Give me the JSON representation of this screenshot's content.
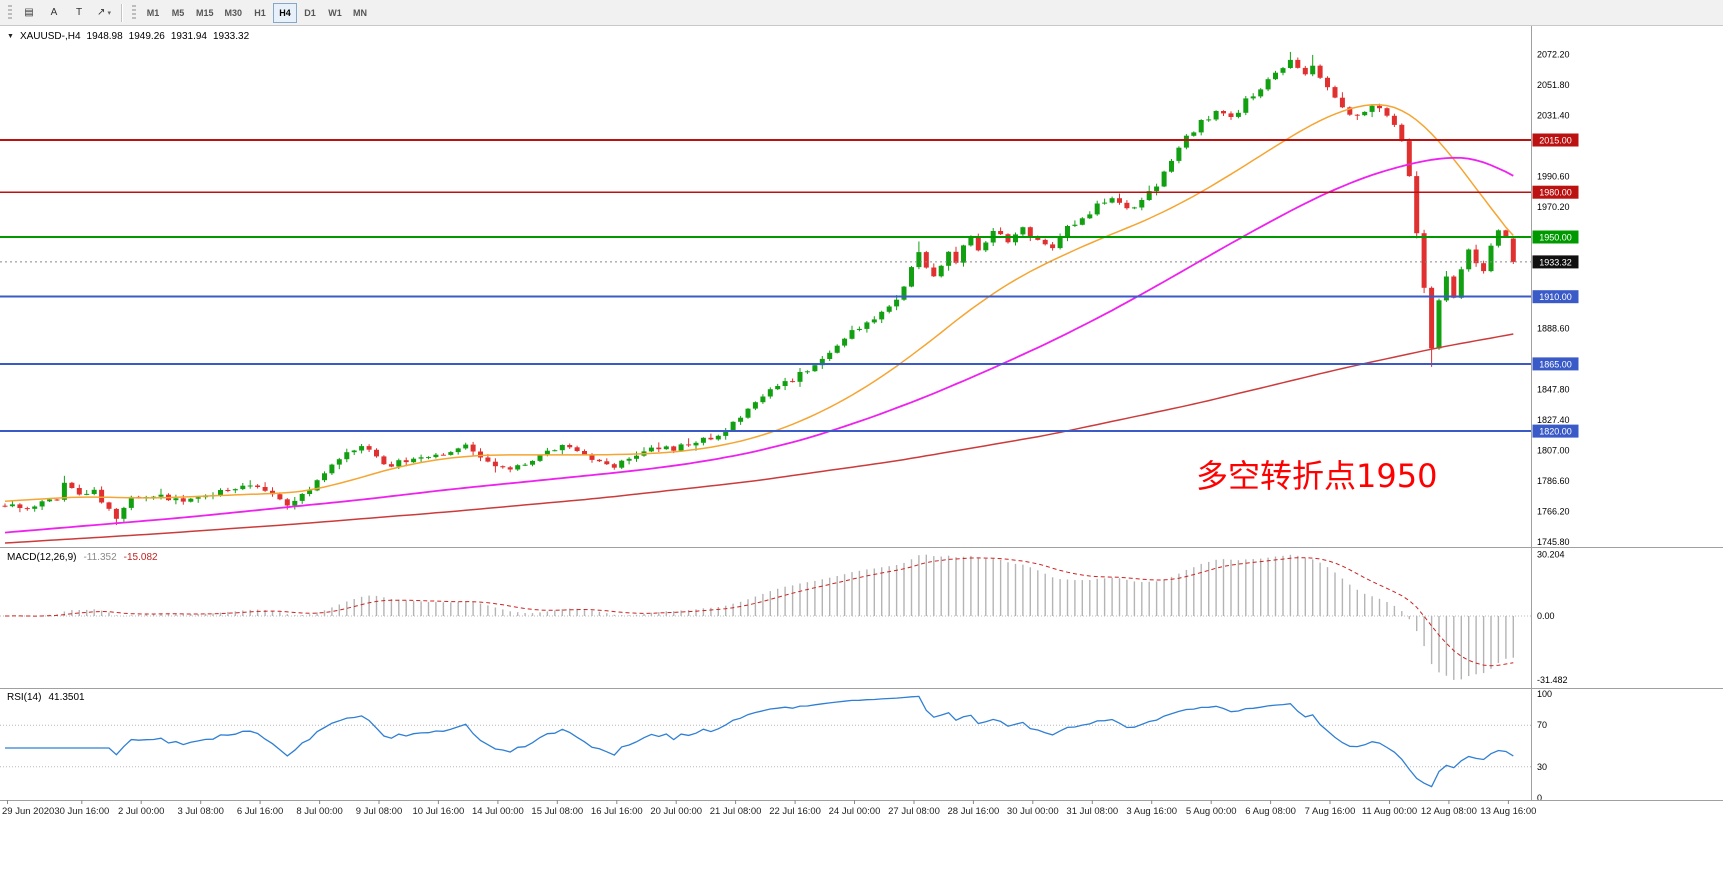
{
  "toolbar": {
    "tools": [
      {
        "name": "chart-objects-button",
        "glyph": "▤",
        "caret": false
      },
      {
        "name": "arrow-tool-button",
        "glyph": "A",
        "caret": false
      },
      {
        "name": "text-tool-button",
        "glyph": "T",
        "caret": false
      },
      {
        "name": "shapes-tool-button",
        "glyph": "↗",
        "caret": true
      }
    ],
    "timeframes": [
      {
        "label": "M1",
        "active": false
      },
      {
        "label": "M5",
        "active": false
      },
      {
        "label": "M15",
        "active": false
      },
      {
        "label": "M30",
        "active": false
      },
      {
        "label": "H1",
        "active": false
      },
      {
        "label": "H4",
        "active": true
      },
      {
        "label": "D1",
        "active": false
      },
      {
        "label": "W1",
        "active": false
      },
      {
        "label": "MN",
        "active": false
      }
    ]
  },
  "symbol_line": {
    "collapse_icon": "▼",
    "title": "XAUUSD-,H4",
    "open": "1948.98",
    "high": "1949.26",
    "low": "1931.94",
    "close": "1933.32"
  },
  "annotation": {
    "text": "多空转折点1950",
    "color": "#ff0000"
  },
  "chart_data": {
    "type": "candlestick",
    "symbol": "XAUUSD-",
    "timeframe": "H4",
    "price_axis": {
      "ticks": [
        "2072.20",
        "2051.80",
        "2031.40",
        "2011.00",
        "1990.60",
        "1970.20",
        "1949.80",
        "1929.40",
        "1909.00",
        "1888.60",
        "1868.20",
        "1847.80",
        "1827.40",
        "1807.00",
        "1786.60",
        "1766.20",
        "1745.80"
      ],
      "max": 2090,
      "min": 1743
    },
    "time_labels": [
      [
        "29 Jun 2020",
        0
      ],
      [
        "30 Jun 16:00",
        10
      ],
      [
        "2 Jul 00:00",
        18
      ],
      [
        "3 Jul 08:00",
        26
      ],
      [
        "6 Jul 16:00",
        34
      ],
      [
        "8 Jul 00:00",
        42
      ],
      [
        "9 Jul 08:00",
        50
      ],
      [
        "10 Jul 16:00",
        58
      ],
      [
        "14 Jul 00:00",
        66
      ],
      [
        "15 Jul 08:00",
        74
      ],
      [
        "16 Jul 16:00",
        82
      ],
      [
        "20 Jul 00:00",
        90
      ],
      [
        "21 Jul 08:00",
        98
      ],
      [
        "22 Jul 16:00",
        106
      ],
      [
        "24 Jul 00:00",
        114
      ],
      [
        "27 Jul 08:00",
        122
      ],
      [
        "28 Jul 16:00",
        130
      ],
      [
        "30 Jul 00:00",
        138
      ],
      [
        "31 Jul 08:00",
        146
      ],
      [
        "3 Aug 16:00",
        154
      ],
      [
        "5 Aug 00:00",
        162
      ],
      [
        "6 Aug 08:00",
        170
      ],
      [
        "7 Aug 16:00",
        178
      ],
      [
        "11 Aug 00:00",
        186
      ],
      [
        "12 Aug 08:00",
        194
      ],
      [
        "13 Aug 16:00",
        202
      ]
    ],
    "candles": {
      "n": 204,
      "close_keyframes": [
        [
          0,
          1770
        ],
        [
          3,
          1766
        ],
        [
          5,
          1771
        ],
        [
          7,
          1774
        ],
        [
          8,
          1786
        ],
        [
          10,
          1776
        ],
        [
          12,
          1779
        ],
        [
          14,
          1768
        ],
        [
          15,
          1762
        ],
        [
          17,
          1774
        ],
        [
          20,
          1777
        ],
        [
          24,
          1774
        ],
        [
          28,
          1777
        ],
        [
          31,
          1782
        ],
        [
          34,
          1784
        ],
        [
          36,
          1779
        ],
        [
          38,
          1771
        ],
        [
          40,
          1777
        ],
        [
          42,
          1786
        ],
        [
          44,
          1798
        ],
        [
          46,
          1807
        ],
        [
          48,
          1811
        ],
        [
          50,
          1803
        ],
        [
          52,
          1797
        ],
        [
          55,
          1801
        ],
        [
          58,
          1803
        ],
        [
          60,
          1806
        ],
        [
          62,
          1813
        ],
        [
          63,
          1808
        ],
        [
          65,
          1800
        ],
        [
          67,
          1795
        ],
        [
          69,
          1797
        ],
        [
          71,
          1801
        ],
        [
          74,
          1807
        ],
        [
          76,
          1811
        ],
        [
          78,
          1806
        ],
        [
          80,
          1798
        ],
        [
          82,
          1797
        ],
        [
          85,
          1804
        ],
        [
          88,
          1809
        ],
        [
          91,
          1809
        ],
        [
          94,
          1814
        ],
        [
          96,
          1818
        ],
        [
          98,
          1824
        ],
        [
          100,
          1833
        ],
        [
          102,
          1843
        ],
        [
          104,
          1849
        ],
        [
          106,
          1855
        ],
        [
          108,
          1862
        ],
        [
          110,
          1869
        ],
        [
          112,
          1876
        ],
        [
          114,
          1887
        ],
        [
          116,
          1892
        ],
        [
          118,
          1898
        ],
        [
          120,
          1908
        ],
        [
          122,
          1928
        ],
        [
          123,
          1942
        ],
        [
          124,
          1930
        ],
        [
          125,
          1922
        ],
        [
          126,
          1931
        ],
        [
          127,
          1938
        ],
        [
          128,
          1931
        ],
        [
          129,
          1944
        ],
        [
          130,
          1950
        ],
        [
          131,
          1941
        ],
        [
          132,
          1948
        ],
        [
          133,
          1956
        ],
        [
          134,
          1950
        ],
        [
          135,
          1946
        ],
        [
          136,
          1952
        ],
        [
          137,
          1958
        ],
        [
          138,
          1951
        ],
        [
          139,
          1946
        ],
        [
          141,
          1943
        ],
        [
          143,
          1957
        ],
        [
          145,
          1963
        ],
        [
          147,
          1971
        ],
        [
          149,
          1976
        ],
        [
          151,
          1969
        ],
        [
          153,
          1975
        ],
        [
          155,
          1986
        ],
        [
          157,
          2003
        ],
        [
          159,
          2016
        ],
        [
          161,
          2027
        ],
        [
          163,
          2034
        ],
        [
          165,
          2029
        ],
        [
          167,
          2041
        ],
        [
          169,
          2051
        ],
        [
          171,
          2059
        ],
        [
          173,
          2067
        ],
        [
          175,
          2057
        ],
        [
          176,
          2063
        ],
        [
          178,
          2050
        ],
        [
          180,
          2037
        ],
        [
          182,
          2030
        ],
        [
          184,
          2039
        ],
        [
          186,
          2031
        ],
        [
          188,
          2016
        ],
        [
          189,
          1990
        ],
        [
          190,
          1952
        ],
        [
          191,
          1915
        ],
        [
          192,
          1876
        ],
        [
          193,
          1906
        ],
        [
          194,
          1923
        ],
        [
          195,
          1911
        ],
        [
          196,
          1929
        ],
        [
          197,
          1943
        ],
        [
          198,
          1934
        ],
        [
          199,
          1927
        ],
        [
          200,
          1946
        ],
        [
          201,
          1953
        ],
        [
          202,
          1949
        ],
        [
          203,
          1933.32
        ]
      ],
      "wick_overrides": [
        {
          "i": 8,
          "high": 1790
        },
        {
          "i": 15,
          "low": 1757
        },
        {
          "i": 123,
          "high": 1947
        },
        {
          "i": 173,
          "high": 2074
        },
        {
          "i": 176,
          "high": 2072
        },
        {
          "i": 192,
          "low": 1863
        }
      ],
      "last_ohlc": {
        "open": 1948.98,
        "high": 1949.26,
        "low": 1931.94,
        "close": 1933.32
      }
    },
    "moving_averages": [
      {
        "name": "fast",
        "color": "#f5a531",
        "width": 1.5,
        "points": [
          [
            0,
            1773
          ],
          [
            10,
            1776
          ],
          [
            20,
            1775
          ],
          [
            30,
            1777
          ],
          [
            40,
            1779
          ],
          [
            46,
            1786
          ],
          [
            52,
            1795
          ],
          [
            58,
            1801
          ],
          [
            64,
            1804
          ],
          [
            72,
            1804
          ],
          [
            80,
            1804
          ],
          [
            88,
            1805
          ],
          [
            94,
            1808
          ],
          [
            100,
            1814
          ],
          [
            106,
            1824
          ],
          [
            112,
            1838
          ],
          [
            118,
            1856
          ],
          [
            124,
            1878
          ],
          [
            130,
            1902
          ],
          [
            136,
            1922
          ],
          [
            142,
            1937
          ],
          [
            148,
            1950
          ],
          [
            154,
            1962
          ],
          [
            160,
            1977
          ],
          [
            166,
            1995
          ],
          [
            172,
            2014
          ],
          [
            176,
            2026
          ],
          [
            180,
            2035
          ],
          [
            184,
            2040
          ],
          [
            187,
            2039
          ],
          [
            190,
            2030
          ],
          [
            193,
            2015
          ],
          [
            196,
            1996
          ],
          [
            199,
            1976
          ],
          [
            201,
            1962
          ],
          [
            203,
            1951
          ]
        ]
      },
      {
        "name": "medium",
        "color": "#ee22ee",
        "width": 1.8,
        "points": [
          [
            0,
            1752
          ],
          [
            12,
            1757
          ],
          [
            24,
            1762
          ],
          [
            36,
            1768
          ],
          [
            48,
            1774
          ],
          [
            60,
            1781
          ],
          [
            72,
            1787
          ],
          [
            84,
            1793
          ],
          [
            92,
            1798
          ],
          [
            100,
            1805
          ],
          [
            108,
            1815
          ],
          [
            116,
            1828
          ],
          [
            124,
            1843
          ],
          [
            132,
            1860
          ],
          [
            140,
            1878
          ],
          [
            148,
            1898
          ],
          [
            156,
            1920
          ],
          [
            164,
            1943
          ],
          [
            172,
            1965
          ],
          [
            178,
            1980
          ],
          [
            184,
            1992
          ],
          [
            189,
            1999
          ],
          [
            193,
            2003
          ],
          [
            197,
            2004
          ],
          [
            200,
            1999
          ],
          [
            203,
            1991
          ]
        ]
      },
      {
        "name": "slow",
        "color": "#cc3b3b",
        "width": 1.5,
        "points": [
          [
            0,
            1745
          ],
          [
            20,
            1751
          ],
          [
            40,
            1758
          ],
          [
            60,
            1766
          ],
          [
            80,
            1775
          ],
          [
            100,
            1786
          ],
          [
            120,
            1800
          ],
          [
            140,
            1817
          ],
          [
            160,
            1838
          ],
          [
            180,
            1862
          ],
          [
            193,
            1876
          ],
          [
            203,
            1885
          ]
        ]
      }
    ],
    "hlines": [
      {
        "label": "2015.00",
        "value": 2015,
        "color": "#bb1111",
        "width": 2.4
      },
      {
        "label": "1980.00",
        "value": 1980,
        "color": "#bb1111",
        "width": 1.6
      },
      {
        "label": "1950.00",
        "value": 1950,
        "color": "#009a00",
        "width": 2
      },
      {
        "label": "1910.00",
        "value": 1910,
        "color": "#3a5bc7",
        "width": 2
      },
      {
        "label": "1865.00",
        "value": 1865,
        "color": "#3a5bc7",
        "width": 2
      },
      {
        "label": "1820.00",
        "value": 1820,
        "color": "#3a5bc7",
        "width": 2
      }
    ],
    "current_price": {
      "label": "1933.32",
      "value": 1933.32,
      "badge_color": "#101010"
    },
    "macd": {
      "title": "MACD(12,26,9)",
      "value_main": "-11.352",
      "value_signal": "-15.082",
      "axis": [
        "30.204",
        "0.00",
        "-31.482"
      ],
      "params": [
        12,
        26,
        9
      ]
    },
    "rsi": {
      "title": "RSI(14)",
      "value": "41.3501",
      "axis": [
        "100",
        "70",
        "30",
        "0"
      ],
      "period": 14,
      "levels": [
        70,
        30
      ]
    },
    "colors": {
      "up": "#12a012",
      "down": "#e03030",
      "macd_hist": "#b4b4b4",
      "macd_signal": "#cc2222",
      "rsi": "#2f7fd4",
      "separator": "#a0a0a0"
    }
  }
}
